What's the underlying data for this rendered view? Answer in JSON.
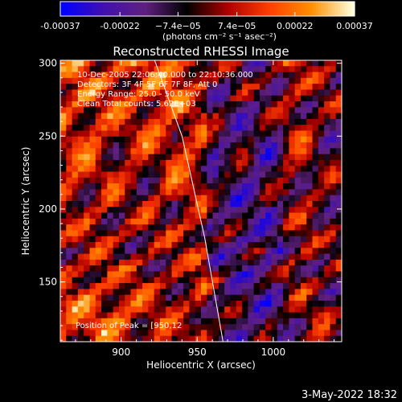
{
  "chart_data": {
    "type": "heatmap",
    "title": "Reconstructed RHESSI Image",
    "xlabel": "Heliocentric X (arcsec)",
    "ylabel": "Heliocentric Y (arcsec)",
    "xlim": [
      860,
      1045
    ],
    "ylim": [
      109,
      302
    ],
    "x_ticks": [
      900,
      950,
      1000
    ],
    "y_ticks": [
      150,
      200,
      250,
      300
    ],
    "colorbar": {
      "range": [
        -0.00037,
        0.00037
      ],
      "tick_values": [
        -0.00037,
        -0.00022,
        -7.4e-05,
        7.4e-05,
        0.00022,
        0.00037
      ],
      "tick_labels": [
        "-0.00037",
        "-0.00022",
        "−7.4e−05",
        "7.4e−05",
        "0.00022",
        "0.00037"
      ],
      "unit_label": "(photons cm⁻² s⁻¹ asec⁻²)",
      "colors": [
        "#0000ff",
        "#4010b0",
        "#602080",
        "#000000",
        "#b00000",
        "#ff4000",
        "#ff9000",
        "#ffffe0"
      ]
    },
    "annotations": [
      "10-Dec-2005 22:06:40.000 to 22:10:36.000",
      "Detectors: 3F 4F 5F 6F 7F 8F, Att 0",
      "Energy Range: 25.0 - 50.0 keV",
      "Clean     Total counts: 5.62E+03"
    ],
    "peak_label": "Position of Peak = [950,12",
    "limb_curve": {
      "x": [
        922,
        940,
        955,
        967
      ],
      "y": [
        302,
        250,
        180,
        109
      ]
    },
    "grid": false
  },
  "footer": {
    "date": "3-May-2022 18:32"
  }
}
